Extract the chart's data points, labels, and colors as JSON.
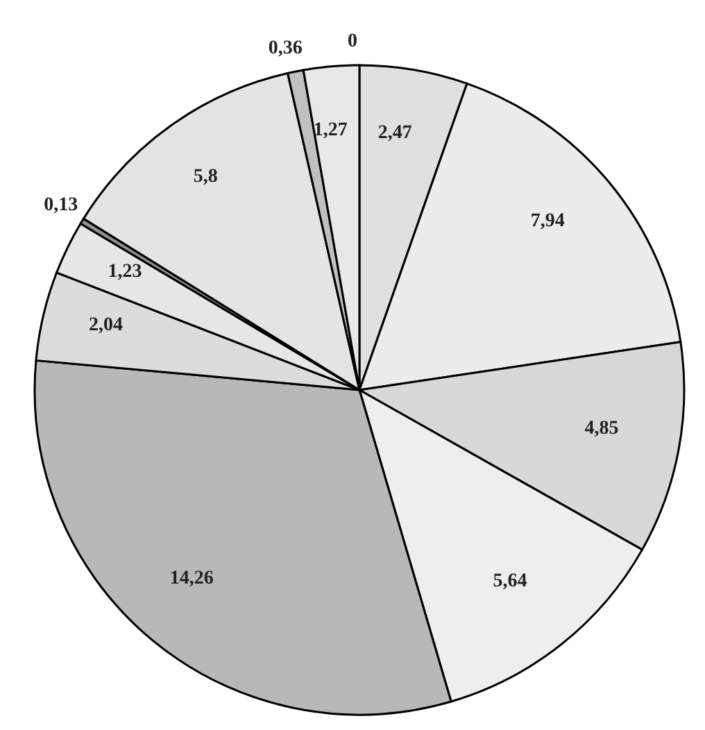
{
  "chart_data": {
    "type": "pie",
    "categories": [
      null,
      null,
      null,
      null,
      null,
      null,
      null,
      null,
      null,
      null,
      null,
      null
    ],
    "values": [
      0,
      2.47,
      7.94,
      4.85,
      5.64,
      14.26,
      2.04,
      1.23,
      0.13,
      5.8,
      0.36,
      1.27
    ],
    "value_labels": [
      "0",
      "2,47",
      "7,94",
      "4,85",
      "5,64",
      "14,26",
      "2,04",
      "1,23",
      "0,13",
      "5,8",
      "0,36",
      "1,27"
    ],
    "colors": [
      "#ffffff",
      "#e0e0e0",
      "#ececec",
      "#d8d8d8",
      "#eeeeee",
      "#b8b8b8",
      "#dcdcdc",
      "#e6e6e6",
      "#909090",
      "#e4e4e4",
      "#c0c0c0",
      "#e8e8e8"
    ],
    "legend": false
  }
}
